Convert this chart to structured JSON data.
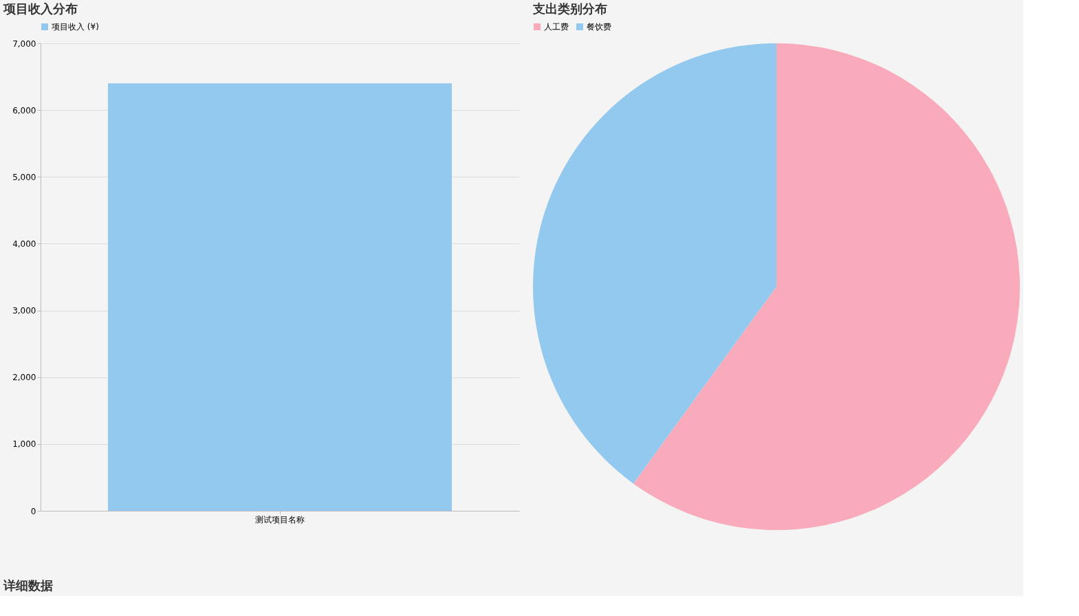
{
  "chart_data": [
    {
      "type": "bar",
      "title": "项目收入分布",
      "categories": [
        "测试项目名称"
      ],
      "series": [
        {
          "name": "项目收入 (¥)",
          "color": "#94c9ef",
          "values": [
            6400
          ]
        }
      ],
      "ylim": [
        0,
        7000
      ],
      "yticks": [
        0,
        {
          "value": 1000,
          "label": "1,000"
        },
        {
          "value": 2000,
          "label": "2,000"
        },
        {
          "value": 3000,
          "label": "3,000"
        },
        {
          "value": 4000,
          "label": "4,000"
        },
        {
          "value": 5000,
          "label": "5,000"
        },
        {
          "value": 6000,
          "label": "6,000"
        },
        {
          "value": 7000,
          "label": "7,000"
        }
      ],
      "grid": "y",
      "legend": "top",
      "annotations": [
        "详细数据"
      ]
    },
    {
      "type": "pie",
      "title": "支出类别分布",
      "categories": [
        "人工费",
        "餐饮费"
      ],
      "values": [
        60,
        40
      ],
      "colors": [
        "#f9aabb",
        "#94c9ef"
      ],
      "legend": "top"
    }
  ]
}
